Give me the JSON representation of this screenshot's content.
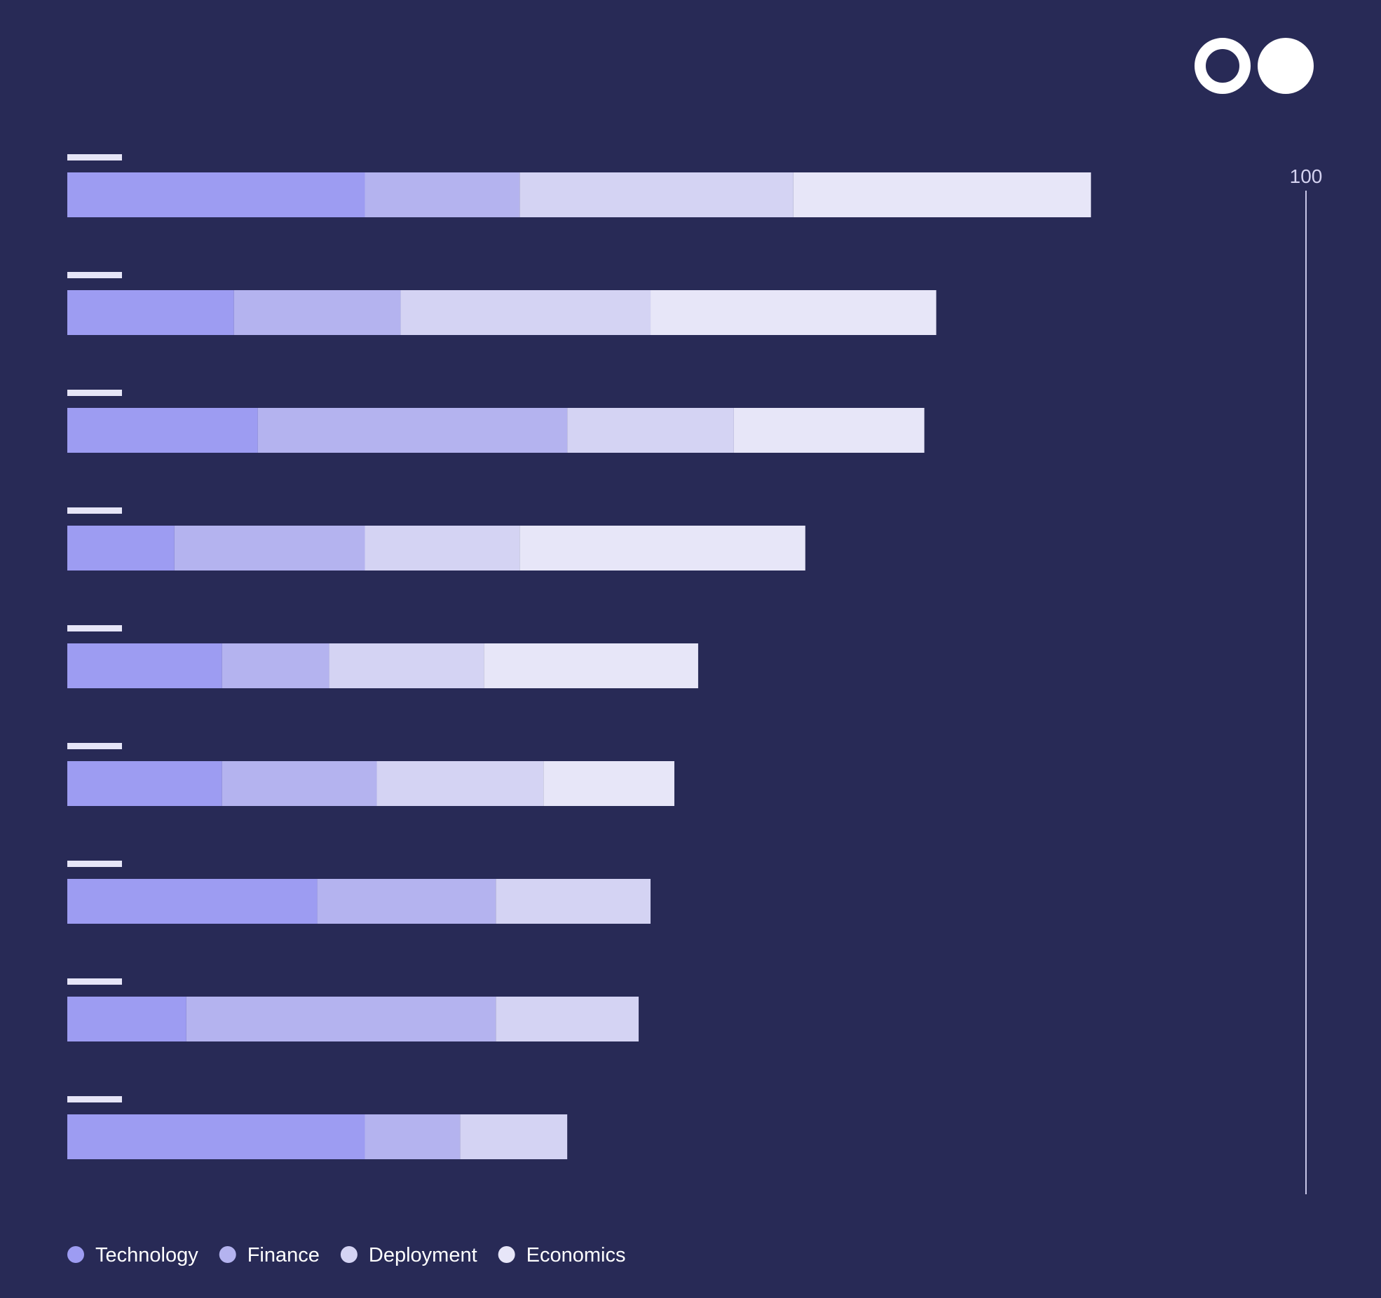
{
  "logo": {
    "icon": "double-circle-logo",
    "color": "#ffffff"
  },
  "chart_data": {
    "type": "bar",
    "orientation": "horizontal",
    "stacked": true,
    "axis_max_label": "100",
    "xlim": [
      0,
      100
    ],
    "categories": [
      "",
      "",
      "",
      "",
      "",
      "",
      "",
      "",
      ""
    ],
    "series": [
      {
        "name": "Technology",
        "color": "#9d9cf2",
        "values": [
          25,
          14,
          16,
          9,
          13,
          13,
          21,
          10,
          25
        ]
      },
      {
        "name": "Finance",
        "color": "#b4b3ef",
        "values": [
          13,
          14,
          26,
          16,
          9,
          13,
          15,
          26,
          8
        ]
      },
      {
        "name": "Deployment",
        "color": "#d4d3f3",
        "values": [
          23,
          21,
          14,
          13,
          13,
          14,
          13,
          12,
          9
        ]
      },
      {
        "name": "Economics",
        "color": "#e7e6f8",
        "values": [
          25,
          24,
          16,
          24,
          18,
          11,
          0,
          0,
          0
        ]
      }
    ],
    "grid": false,
    "legend_position": "bottom-left"
  }
}
